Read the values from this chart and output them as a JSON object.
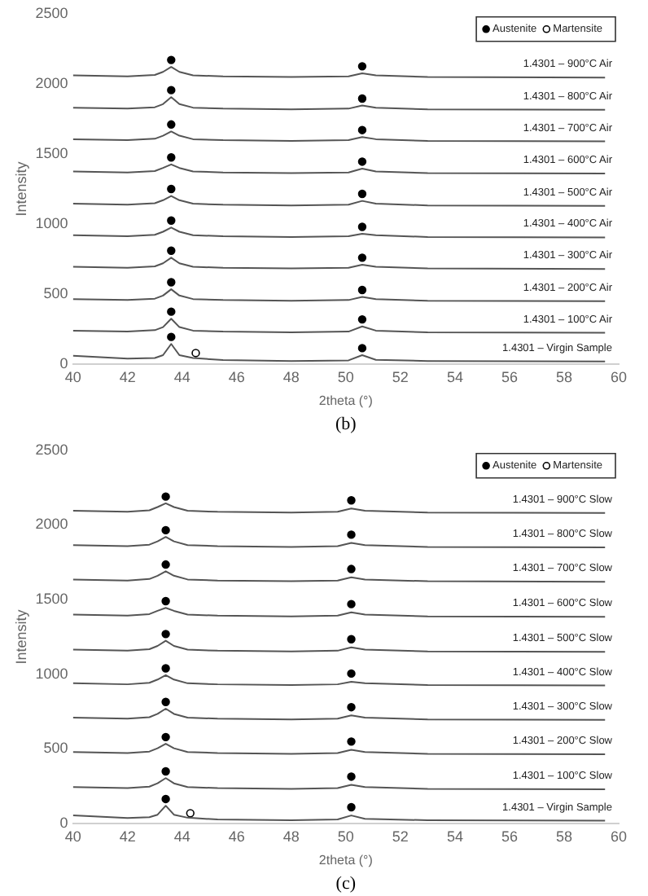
{
  "chart_data": [
    {
      "type": "line",
      "xlabel": "2theta (°)",
      "ylabel": "Intensity",
      "annotations": [
        "(b)"
      ],
      "xlim": [
        40,
        60
      ],
      "xticks": [
        40,
        42,
        44,
        46,
        48,
        50,
        52,
        54,
        56,
        58,
        60
      ],
      "ylim": [
        0,
        2500
      ],
      "yticks": [
        0,
        500,
        1000,
        1500,
        2000,
        2500
      ],
      "grid": false,
      "legend": "top right",
      "line_style": "solid",
      "x": [
        40,
        42,
        43,
        43.3,
        43.6,
        43.9,
        44.4,
        45.5,
        48,
        50.1,
        50.6,
        51.1,
        53,
        59.5
      ],
      "series": [
        {
          "name": "1.4301 – Virgin Sample",
          "color": "#555555",
          "values": [
            60,
            40,
            45,
            65,
            145,
            65,
            45,
            30,
            23,
            28,
            65,
            32,
            23,
            20
          ]
        },
        {
          "name": "1.4301 – 100°C Air",
          "color": "#555555",
          "values": [
            240,
            233,
            243,
            265,
            325,
            265,
            240,
            233,
            228,
            233,
            270,
            240,
            228,
            225
          ]
        },
        {
          "name": "1.4301 – 200°C Air",
          "color": "#555555",
          "values": [
            465,
            458,
            468,
            490,
            535,
            490,
            465,
            458,
            453,
            458,
            480,
            465,
            453,
            450
          ]
        },
        {
          "name": "1.4301 – 300°C Air",
          "color": "#555555",
          "values": [
            695,
            688,
            698,
            720,
            760,
            720,
            695,
            688,
            683,
            688,
            710,
            695,
            683,
            680
          ]
        },
        {
          "name": "1.4301 – 400°C Air",
          "color": "#555555",
          "values": [
            920,
            913,
            923,
            945,
            975,
            945,
            920,
            913,
            908,
            913,
            930,
            920,
            908,
            905
          ]
        },
        {
          "name": "1.4301 – 500°C Air",
          "color": "#555555",
          "values": [
            1145,
            1138,
            1148,
            1170,
            1200,
            1170,
            1145,
            1138,
            1133,
            1138,
            1165,
            1145,
            1133,
            1130
          ]
        },
        {
          "name": "1.4301 – 600°C Air",
          "color": "#555555",
          "values": [
            1375,
            1368,
            1378,
            1400,
            1425,
            1400,
            1375,
            1368,
            1363,
            1368,
            1395,
            1375,
            1363,
            1360
          ]
        },
        {
          "name": "1.4301 – 700°C Air",
          "color": "#555555",
          "values": [
            1605,
            1598,
            1608,
            1630,
            1660,
            1630,
            1605,
            1598,
            1593,
            1598,
            1620,
            1605,
            1593,
            1590
          ]
        },
        {
          "name": "1.4301 – 800°C Air",
          "color": "#555555",
          "values": [
            1830,
            1823,
            1833,
            1855,
            1905,
            1855,
            1830,
            1823,
            1818,
            1823,
            1845,
            1830,
            1818,
            1815
          ]
        },
        {
          "name": "1.4301 – 900°C Air",
          "color": "#555555",
          "values": [
            2060,
            2053,
            2063,
            2085,
            2120,
            2085,
            2060,
            2053,
            2048,
            2053,
            2075,
            2060,
            2048,
            2045
          ]
        },
        {
          "name": "Austenite",
          "type": "scatter",
          "marker": "circle",
          "color": "#000000",
          "x": [
            43.6,
            50.6,
            43.6,
            50.6,
            43.6,
            50.6,
            43.6,
            50.6,
            43.6,
            50.6,
            43.6,
            50.6,
            43.6,
            50.6,
            43.6,
            50.6,
            43.6,
            50.6,
            43.6,
            50.6
          ],
          "values": [
            195,
            115,
            375,
            320,
            585,
            530,
            810,
            760,
            1025,
            980,
            1250,
            1215,
            1475,
            1445,
            1710,
            1670,
            1955,
            1895,
            2170,
            2125
          ]
        },
        {
          "name": "Martensite",
          "type": "scatter",
          "marker": "circle",
          "color": "#ffffff",
          "x": [
            44.5
          ],
          "values": [
            80
          ]
        }
      ]
    },
    {
      "type": "line",
      "xlabel": "2theta (°)",
      "ylabel": "Intensity",
      "annotations": [
        "(c)"
      ],
      "xlim": [
        40,
        60
      ],
      "xticks": [
        40,
        42,
        44,
        46,
        48,
        50,
        52,
        54,
        56,
        58,
        60
      ],
      "ylim": [
        0,
        2500
      ],
      "yticks": [
        0,
        500,
        1000,
        1500,
        2000,
        2500
      ],
      "grid": false,
      "legend": "top right",
      "line_style": "solid",
      "x": [
        40,
        42,
        42.8,
        43.1,
        43.4,
        43.7,
        44.2,
        45.3,
        48,
        49.7,
        50.2,
        50.7,
        53,
        59.5
      ],
      "series": [
        {
          "name": "1.4301 – Virgin Sample",
          "color": "#555555",
          "values": [
            55,
            38,
            43,
            60,
            120,
            60,
            40,
            28,
            23,
            28,
            55,
            32,
            23,
            20
          ]
        },
        {
          "name": "1.4301 – 100°C Slow",
          "color": "#555555",
          "values": [
            245,
            238,
            248,
            270,
            305,
            270,
            245,
            238,
            233,
            238,
            260,
            245,
            233,
            230
          ]
        },
        {
          "name": "1.4301 – 200°C Slow",
          "color": "#555555",
          "values": [
            480,
            473,
            483,
            505,
            535,
            505,
            480,
            473,
            468,
            473,
            495,
            480,
            468,
            465
          ]
        },
        {
          "name": "1.4301 – 300°C Slow",
          "color": "#555555",
          "values": [
            710,
            703,
            713,
            735,
            770,
            735,
            710,
            703,
            698,
            703,
            725,
            710,
            698,
            695
          ]
        },
        {
          "name": "1.4301 – 400°C Slow",
          "color": "#555555",
          "values": [
            940,
            933,
            943,
            965,
            995,
            965,
            940,
            933,
            928,
            933,
            950,
            940,
            928,
            925
          ]
        },
        {
          "name": "1.4301 – 500°C Slow",
          "color": "#555555",
          "values": [
            1165,
            1158,
            1168,
            1190,
            1225,
            1190,
            1165,
            1158,
            1153,
            1158,
            1180,
            1165,
            1153,
            1150
          ]
        },
        {
          "name": "1.4301 – 600°C Slow",
          "color": "#555555",
          "values": [
            1400,
            1393,
            1403,
            1425,
            1445,
            1425,
            1400,
            1393,
            1388,
            1393,
            1415,
            1400,
            1388,
            1385
          ]
        },
        {
          "name": "1.4301 – 700°C Slow",
          "color": "#555555",
          "values": [
            1635,
            1628,
            1638,
            1660,
            1690,
            1660,
            1635,
            1628,
            1623,
            1628,
            1650,
            1635,
            1623,
            1620
          ]
        },
        {
          "name": "1.4301 – 800°C Slow",
          "color": "#555555",
          "values": [
            1865,
            1858,
            1868,
            1890,
            1920,
            1890,
            1865,
            1858,
            1853,
            1858,
            1880,
            1865,
            1853,
            1850
          ]
        },
        {
          "name": "1.4301 – 900°C Slow",
          "color": "#555555",
          "values": [
            2095,
            2088,
            2098,
            2120,
            2145,
            2120,
            2095,
            2088,
            2083,
            2088,
            2110,
            2095,
            2083,
            2080
          ]
        },
        {
          "name": "Austenite",
          "type": "scatter",
          "marker": "circle",
          "color": "#000000",
          "x": [
            43.4,
            50.2,
            43.4,
            50.2,
            43.4,
            50.2,
            43.4,
            50.2,
            43.4,
            50.2,
            43.4,
            50.2,
            43.4,
            50.2,
            43.4,
            50.2,
            43.4,
            50.2,
            43.4,
            50.2
          ],
          "values": [
            165,
            110,
            350,
            315,
            580,
            550,
            815,
            780,
            1040,
            1005,
            1270,
            1235,
            1490,
            1470,
            1735,
            1705,
            1965,
            1935,
            2190,
            2165
          ]
        },
        {
          "name": "Martensite",
          "type": "scatter",
          "marker": "circle",
          "color": "#ffffff",
          "x": [
            44.3
          ],
          "values": [
            70
          ]
        }
      ]
    }
  ]
}
